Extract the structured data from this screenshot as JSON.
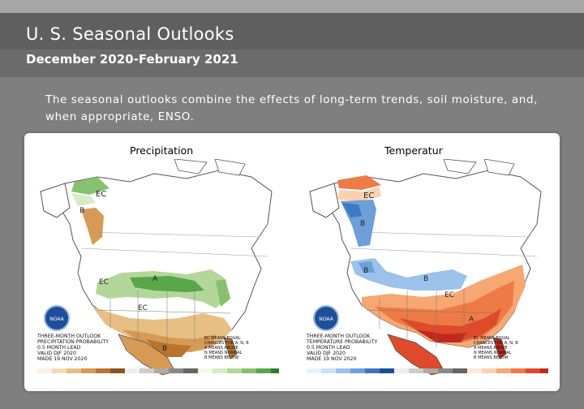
{
  "slide": {
    "title": "U. S. Seasonal Outlooks",
    "subtitle": "December 2020-February 2021",
    "body": "The seasonal outlooks combine the effects of long-term trends, soil moisture, and, when appropriate, ENSO."
  },
  "maps": {
    "precipitation": {
      "label": "Precipitation",
      "caption": [
        "THREE-MONTH OUTLOOK",
        "PRECIPITATION PROBABILITY",
        "0.5 MONTH LEAD",
        "VALID DJF 2020",
        "MADE 19 NOV 2020"
      ],
      "legend_notes": [
        "EC MEANS EQUAL",
        "CHANCES FOR A, N, B",
        "A MEANS ABOVE",
        "N MEANS NORMAL",
        "B MEANS BELOW"
      ],
      "region_labels": {
        "ec": "EC",
        "a": "A",
        "b": "B"
      }
    },
    "temperature": {
      "label": "Temperatur",
      "caption": [
        "THREE-MONTH OUTLOOK",
        "TEMPERATURE PROBABILITY",
        "0.5 MONTH LEAD",
        "VALID DJF 2020",
        "MADE 19 NOV 2020"
      ],
      "legend_notes": [
        "EC MEANS EQUAL",
        "CHANCES FOR A, N, B",
        "A MEANS ABOVE",
        "N MEANS NORMAL",
        "B MEANS BELOW"
      ],
      "region_labels": {
        "ec": "EC",
        "a": "A",
        "b": "B"
      }
    }
  },
  "logo_text": "NOAA",
  "colors": {
    "precip_wet": [
      "#d7ebc6",
      "#b3d79a",
      "#87c06e",
      "#5aa64a"
    ],
    "precip_dry": [
      "#f3dcb4",
      "#e7bf84",
      "#d69a55",
      "#b9742e"
    ],
    "temp_warm": [
      "#fbd2b0",
      "#f6a772",
      "#ee7a46",
      "#dd4b2a",
      "#c02a1e"
    ],
    "temp_cold": [
      "#cfe0f5",
      "#9cc1ea",
      "#6d9fd8",
      "#3d79c2"
    ]
  }
}
